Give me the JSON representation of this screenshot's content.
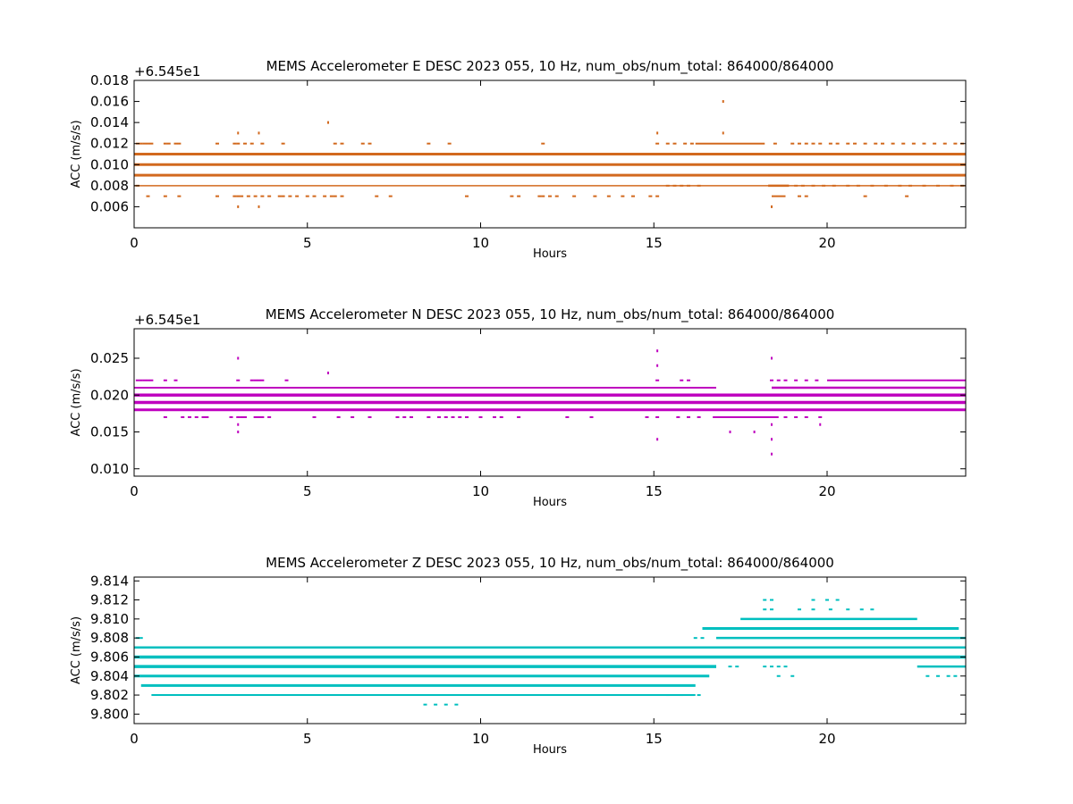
{
  "chart_data": [
    {
      "type": "scatter",
      "title": "MEMS Accelerometer E DESC 2023 055, 10 Hz, num_obs/num_total: 864000/864000",
      "xlabel": "Hours",
      "ylabel": "ACC (m/s/s)",
      "offset_label": "+6.545e1",
      "color": "#d2691e",
      "xlim": [
        0,
        24
      ],
      "ylim": [
        0.004,
        0.018
      ],
      "xticks": [
        "0",
        "5",
        "10",
        "15",
        "20"
      ],
      "xtick_values": [
        0,
        5,
        10,
        15,
        20
      ],
      "yticks": [
        "0.006",
        "0.008",
        "0.010",
        "0.012",
        "0.014",
        "0.016",
        "0.018"
      ],
      "ytick_values": [
        0.006,
        0.008,
        0.01,
        0.012,
        0.014,
        0.016,
        0.018
      ],
      "bands": [
        {
          "y": 0.011,
          "x": [
            0,
            24
          ],
          "weight": 3
        },
        {
          "y": 0.01,
          "x": [
            0,
            24
          ],
          "weight": 3
        },
        {
          "y": 0.009,
          "x": [
            0,
            24
          ],
          "weight": 3
        },
        {
          "y": 0.008,
          "x": [
            0,
            24
          ],
          "weight": 1.5
        },
        {
          "y": 0.012,
          "x": [
            16.2,
            18.2
          ],
          "weight": 2
        },
        {
          "y": 0.008,
          "x": [
            18.3,
            18.9
          ],
          "weight": 2.5
        },
        {
          "y": 0.007,
          "x": [
            18.4,
            18.8
          ],
          "weight": 2
        }
      ],
      "sparse_rows": [
        {
          "y": 0.012,
          "x": [
            0.1,
            0.2,
            0.3,
            0.4,
            0.5,
            0.9,
            1.0,
            1.2,
            1.3,
            2.4,
            2.9,
            3.0,
            3.2,
            3.4,
            3.7,
            4.3,
            5.8,
            6.0,
            6.6,
            6.8,
            8.5,
            9.1,
            11.8,
            15.1,
            15.4,
            15.6,
            15.9,
            16.1,
            18.5,
            19.0,
            19.2,
            19.4,
            19.6,
            19.8,
            20.1,
            20.3,
            20.6,
            20.8,
            21.1,
            21.4,
            21.6,
            21.9,
            22.2,
            22.5,
            22.8,
            23.1,
            23.4,
            23.7,
            23.9
          ]
        },
        {
          "y": 0.008,
          "x": [
            0.1,
            15.4,
            15.6,
            15.8,
            16.0,
            16.3,
            19.1,
            19.3,
            19.6,
            19.9,
            20.2,
            20.6,
            20.9,
            21.3,
            21.7,
            22.1,
            22.4,
            22.8,
            23.2,
            23.6,
            23.9
          ]
        },
        {
          "y": 0.007,
          "x": [
            0.4,
            0.9,
            1.3,
            2.4,
            2.9,
            3.0,
            3.1,
            3.3,
            3.5,
            3.7,
            3.9,
            4.2,
            4.3,
            4.5,
            4.7,
            5.0,
            5.2,
            5.5,
            5.7,
            5.8,
            6.0,
            7.0,
            7.4,
            9.6,
            10.9,
            11.1,
            11.7,
            11.8,
            12.0,
            12.2,
            12.7,
            13.3,
            13.7,
            14.1,
            14.4,
            14.9,
            15.1,
            19.2,
            19.4,
            21.1,
            22.3
          ]
        }
      ],
      "outliers": [
        {
          "x": 3.0,
          "y": 0.013
        },
        {
          "x": 3.6,
          "y": 0.013
        },
        {
          "x": 5.6,
          "y": 0.014
        },
        {
          "x": 15.1,
          "y": 0.013
        },
        {
          "x": 17.0,
          "y": 0.016
        },
        {
          "x": 17.0,
          "y": 0.013
        },
        {
          "x": 3.0,
          "y": 0.006
        },
        {
          "x": 3.6,
          "y": 0.006
        },
        {
          "x": 18.4,
          "y": 0.006
        }
      ]
    },
    {
      "type": "scatter",
      "title": "MEMS Accelerometer N DESC 2023 055, 10 Hz, num_obs/num_total: 864000/864000",
      "xlabel": "Hours",
      "ylabel": "ACC (m/s/s)",
      "offset_label": "+6.545e1",
      "color": "#bf00bf",
      "xlim": [
        0,
        24
      ],
      "ylim": [
        0.009,
        0.029
      ],
      "xticks": [
        "0",
        "5",
        "10",
        "15",
        "20"
      ],
      "xtick_values": [
        0,
        5,
        10,
        15,
        20
      ],
      "yticks": [
        "0.010",
        "0.015",
        "0.020",
        "0.025"
      ],
      "ytick_values": [
        0.01,
        0.015,
        0.02,
        0.025
      ],
      "bands": [
        {
          "y": 0.021,
          "x": [
            0,
            16.8
          ],
          "weight": 2
        },
        {
          "y": 0.02,
          "x": [
            0,
            24
          ],
          "weight": 3.5
        },
        {
          "y": 0.019,
          "x": [
            0,
            24
          ],
          "weight": 3.5
        },
        {
          "y": 0.018,
          "x": [
            0,
            24
          ],
          "weight": 3
        },
        {
          "y": 0.021,
          "x": [
            18.4,
            24
          ],
          "weight": 2.5
        },
        {
          "y": 0.022,
          "x": [
            20.0,
            24
          ],
          "weight": 2
        },
        {
          "y": 0.017,
          "x": [
            16.7,
            18.6
          ],
          "weight": 2
        }
      ],
      "sparse_rows": [
        {
          "y": 0.022,
          "x": [
            0.1,
            0.2,
            0.3,
            0.4,
            0.5,
            0.9,
            1.2,
            3.0,
            3.4,
            3.5,
            3.6,
            3.7,
            4.4,
            15.1,
            15.8,
            16.0,
            18.4,
            18.6,
            18.8,
            19.1,
            19.4,
            19.7
          ]
        },
        {
          "y": 0.017,
          "x": [
            0.9,
            1.4,
            1.6,
            1.8,
            2.0,
            2.1,
            2.8,
            3.0,
            3.1,
            3.2,
            3.5,
            3.6,
            3.7,
            3.9,
            5.2,
            5.9,
            6.3,
            6.8,
            7.6,
            7.8,
            8.0,
            8.5,
            8.8,
            9.0,
            9.2,
            9.4,
            9.6,
            10.0,
            10.4,
            10.6,
            11.1,
            12.5,
            13.2,
            14.8,
            15.1,
            15.7,
            16.0,
            16.3,
            18.8,
            19.1,
            19.4,
            19.8
          ]
        }
      ],
      "outliers": [
        {
          "x": 3.0,
          "y": 0.025
        },
        {
          "x": 5.6,
          "y": 0.023
        },
        {
          "x": 15.1,
          "y": 0.026
        },
        {
          "x": 15.1,
          "y": 0.024
        },
        {
          "x": 18.4,
          "y": 0.025
        },
        {
          "x": 3.0,
          "y": 0.016
        },
        {
          "x": 3.0,
          "y": 0.015
        },
        {
          "x": 17.2,
          "y": 0.015
        },
        {
          "x": 17.9,
          "y": 0.015
        },
        {
          "x": 18.4,
          "y": 0.016
        },
        {
          "x": 18.4,
          "y": 0.014
        },
        {
          "x": 15.1,
          "y": 0.014
        },
        {
          "x": 18.4,
          "y": 0.012
        },
        {
          "x": 19.8,
          "y": 0.016
        }
      ]
    },
    {
      "type": "scatter",
      "title": "MEMS Accelerometer Z DESC 2023 055, 10 Hz, num_obs/num_total: 864000/864000",
      "xlabel": "Hours",
      "ylabel": "ACC (m/s/s)",
      "offset_label": "",
      "color": "#00bfbf",
      "xlim": [
        0,
        24
      ],
      "ylim": [
        9.799,
        9.8144
      ],
      "xticks": [
        "0",
        "5",
        "10",
        "15",
        "20"
      ],
      "xtick_values": [
        0,
        5,
        10,
        15,
        20
      ],
      "yticks": [
        "9.800",
        "9.802",
        "9.804",
        "9.806",
        "9.808",
        "9.810",
        "9.812",
        "9.814"
      ],
      "ytick_values": [
        9.8,
        9.802,
        9.804,
        9.806,
        9.808,
        9.81,
        9.812,
        9.814
      ],
      "bands": [
        {
          "y": 9.806,
          "x": [
            0,
            24
          ],
          "weight": 3.5
        },
        {
          "y": 9.805,
          "x": [
            0,
            16.8
          ],
          "weight": 3.5
        },
        {
          "y": 9.804,
          "x": [
            0,
            16.6
          ],
          "weight": 3
        },
        {
          "y": 9.803,
          "x": [
            0.2,
            16.2
          ],
          "weight": 3
        },
        {
          "y": 9.802,
          "x": [
            0.5,
            16.2
          ],
          "weight": 2
        },
        {
          "y": 9.807,
          "x": [
            0,
            24
          ],
          "weight": 2.5
        },
        {
          "y": 9.808,
          "x": [
            16.8,
            24
          ],
          "weight": 2.5
        },
        {
          "y": 9.809,
          "x": [
            16.4,
            23.8
          ],
          "weight": 3
        },
        {
          "y": 9.81,
          "x": [
            17.5,
            22.6
          ],
          "weight": 2.5
        },
        {
          "y": 9.805,
          "x": [
            22.6,
            24
          ],
          "weight": 2.5
        }
      ],
      "sparse_rows": [
        {
          "y": 9.807,
          "x": [
            0.1,
            0.2,
            0.4,
            0.6,
            0.8,
            1.0,
            1.2,
            1.4,
            1.6,
            1.8,
            2.0,
            2.3,
            2.6,
            2.9,
            3.3,
            3.5,
            3.7,
            3.9,
            4.1,
            4.3,
            4.6,
            4.8,
            5.2,
            5.4,
            5.7,
            6.0,
            6.3,
            6.6,
            6.9,
            7.3,
            7.6,
            7.9,
            8.2,
            8.6,
            9.1,
            9.6,
            10.0,
            10.4,
            10.8,
            11.2,
            11.6,
            12.0,
            12.4,
            12.8,
            13.2,
            13.6,
            14.0,
            14.4,
            14.8
          ]
        },
        {
          "y": 9.808,
          "x": [
            0.1,
            0.2,
            16.2,
            16.4
          ]
        },
        {
          "y": 9.812,
          "x": [
            18.2,
            18.4,
            19.6,
            20.0,
            20.3
          ]
        },
        {
          "y": 9.811,
          "x": [
            18.2,
            18.4,
            19.2,
            19.6,
            20.1,
            20.6,
            21.0,
            21.3
          ]
        },
        {
          "y": 9.805,
          "x": [
            17.2,
            17.4,
            18.2,
            18.4,
            18.6,
            18.8
          ]
        },
        {
          "y": 9.804,
          "x": [
            18.6,
            19.0,
            22.9,
            23.2,
            23.5,
            23.7
          ]
        },
        {
          "y": 9.802,
          "x": [
            15.4,
            15.8,
            16.1,
            16.3
          ]
        },
        {
          "y": 9.801,
          "x": [
            8.4,
            8.7,
            9.0,
            9.3
          ]
        }
      ],
      "outliers": []
    }
  ]
}
